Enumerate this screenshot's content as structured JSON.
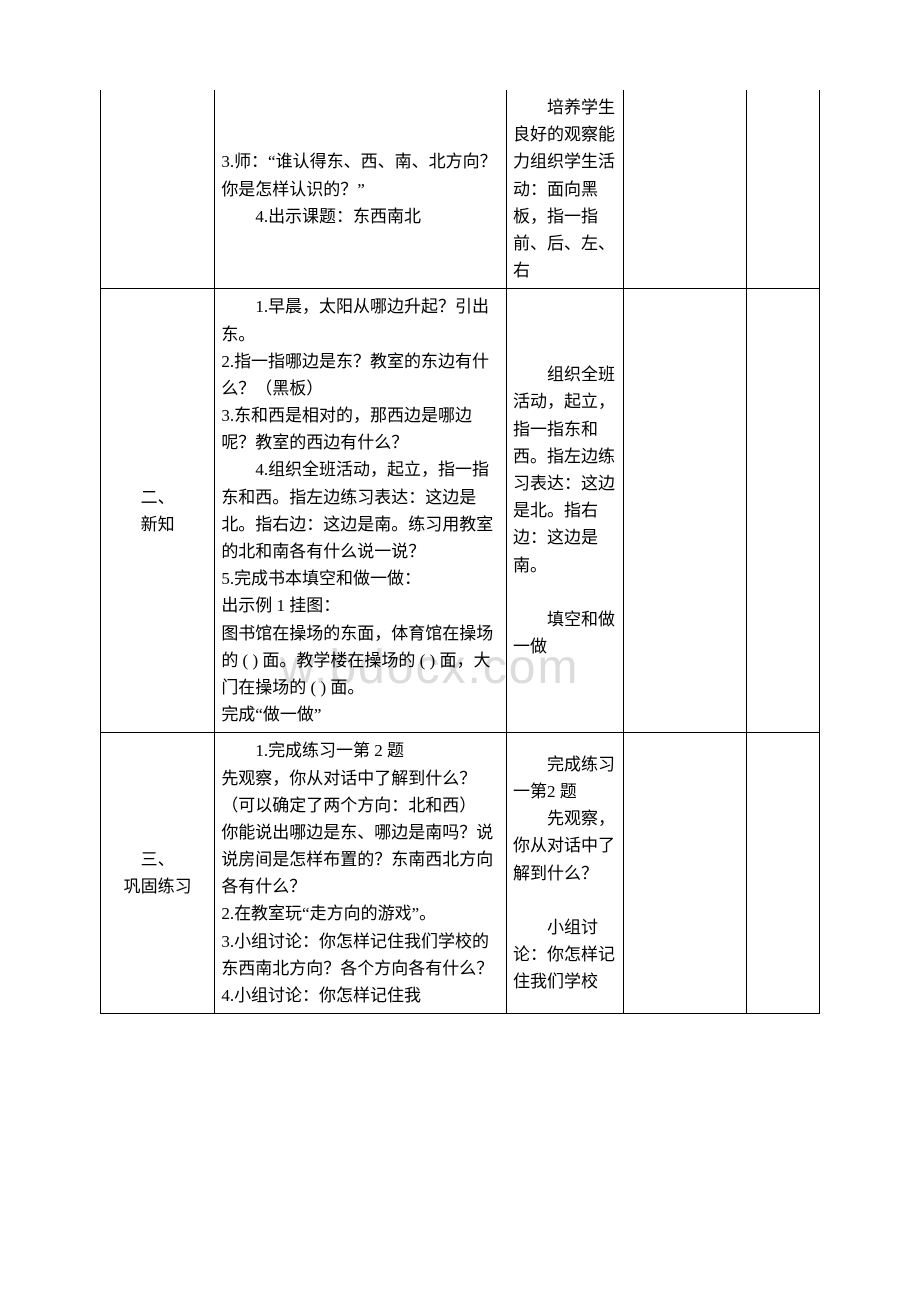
{
  "watermark": "w.bdocx.com",
  "rows": [
    {
      "col1": "",
      "col2_lines": [
        "3.师：“谁认得东、西、南、北方向？你是怎样认识的？”",
        "4.出示课题：东西南北"
      ],
      "col2_indent_first": false,
      "col2_indent_special": [
        false,
        true
      ],
      "col3_lines": [
        "培养学生良好的观察能力组织学生活动：面向黑板，指一指前、后、左、右"
      ],
      "col3_indent": [
        true
      ]
    },
    {
      "col1": "二、\n新知",
      "col2_lines": [
        "1.早晨，太阳从哪边升起？引出东。",
        "2.指一指哪边是东？教室的东边有什么？（黑板）",
        "3.东和西是相对的，那西边是哪边呢？教室的西边有什么？",
        "4.组织全班活动，起立，指一指东和西。指左边练习表达：这边是北。指右边：这边是南。练习用教室的北和南各有什么说一说？",
        "5.完成书本填空和做一做：",
        "出示例 1 挂图：",
        "图书馆在操场的东面，体育馆在操场的 ( ) 面。教学楼在操场的 ( ) 面，大门在操场的 ( ) 面。",
        "完成“做一做”"
      ],
      "col2_indent_special": [
        true,
        false,
        false,
        true,
        false,
        false,
        false,
        false
      ],
      "col3_lines": [
        "组织全班活动，起立，指一指东和西。指左边练习表达：这边是北。指右边：这边是南。",
        "",
        "填空和做一做"
      ],
      "col3_indent": [
        true,
        false,
        true
      ]
    },
    {
      "col1": "三、\n巩固练习",
      "col2_lines": [
        "1.完成练习一第 2 题",
        "先观察，你从对话中了解到什么？（可以确定了两个方向：北和西）",
        "你能说出哪边是东、哪边是南吗？说说房间是怎样布置的？东南西北方向各有什么？",
        "2.在教室玩“走方向的游戏”。",
        "3.小组讨论：你怎样记住我们学校的东西南北方向？各个方向各有什么？",
        "4.小组讨论：你怎样记住我"
      ],
      "col2_indent_special": [
        true,
        false,
        false,
        false,
        false,
        false
      ],
      "col3_lines": [
        "完成练习一第2 题",
        "先观察，你从对话中了解到什么？",
        "",
        "小组讨论：你怎样记住我们学校"
      ],
      "col3_indent": [
        true,
        true,
        false,
        true
      ]
    }
  ]
}
